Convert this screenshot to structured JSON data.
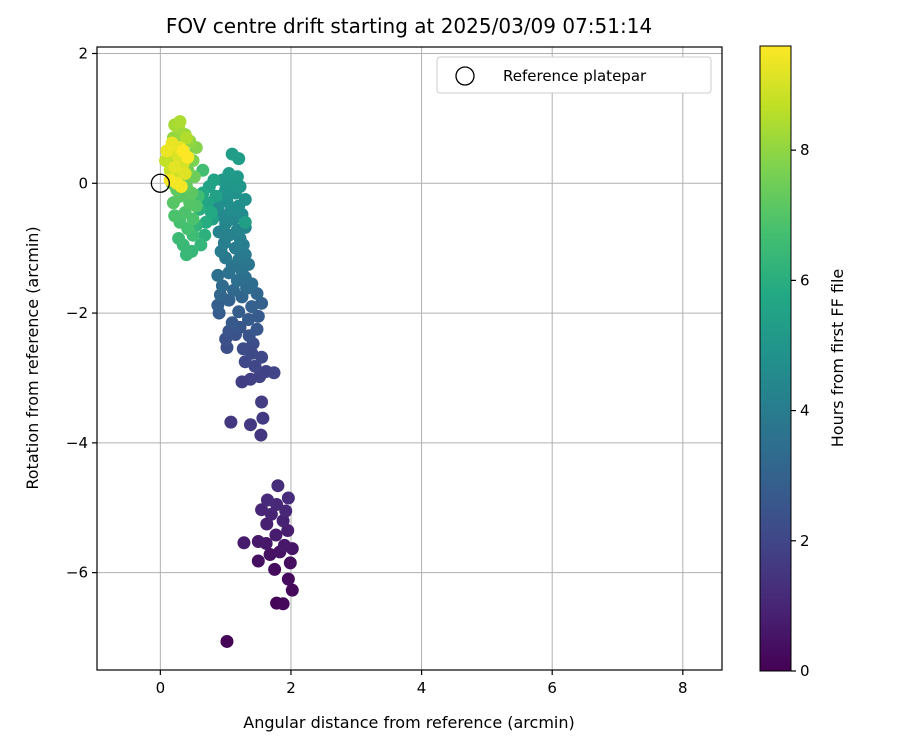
{
  "chart_data": {
    "type": "scatter",
    "title": "FOV centre drift starting at 2025/03/09 07:51:14",
    "xlabel": "Angular distance from reference (arcmin)",
    "ylabel": "Rotation from reference (arcmin)",
    "xlim": [
      -0.97,
      8.6
    ],
    "ylim": [
      -7.5,
      2.1
    ],
    "xticks": [
      0,
      2,
      4,
      6,
      8
    ],
    "yticks": [
      -6,
      -4,
      -2,
      0,
      2
    ],
    "grid": true,
    "legend": {
      "placement": "top-right",
      "entries": [
        "Reference platepar"
      ]
    },
    "reference_point": {
      "label": "Reference platepar",
      "x": 0,
      "y": 0
    },
    "colorbar": {
      "label": "Hours from first FF file",
      "range": [
        0,
        9.6
      ],
      "ticks": [
        0,
        2,
        4,
        6,
        8
      ],
      "colormap": "viridis"
    },
    "points": [
      {
        "x": 1.02,
        "y": -7.06,
        "t": 0.05
      },
      {
        "x": 1.78,
        "y": -6.47,
        "t": 0.15
      },
      {
        "x": 1.88,
        "y": -6.48,
        "t": 0.18
      },
      {
        "x": 2.02,
        "y": -6.27,
        "t": 0.2
      },
      {
        "x": 1.96,
        "y": -6.1,
        "t": 0.25
      },
      {
        "x": 1.75,
        "y": -5.95,
        "t": 0.3
      },
      {
        "x": 1.99,
        "y": -5.85,
        "t": 0.35
      },
      {
        "x": 1.5,
        "y": -5.82,
        "t": 0.4
      },
      {
        "x": 1.68,
        "y": -5.72,
        "t": 0.45
      },
      {
        "x": 1.83,
        "y": -5.68,
        "t": 0.5
      },
      {
        "x": 2.02,
        "y": -5.63,
        "t": 0.55
      },
      {
        "x": 1.9,
        "y": -5.58,
        "t": 0.6
      },
      {
        "x": 1.62,
        "y": -5.55,
        "t": 0.62
      },
      {
        "x": 1.5,
        "y": -5.52,
        "t": 0.65
      },
      {
        "x": 1.28,
        "y": -5.54,
        "t": 0.7
      },
      {
        "x": 1.77,
        "y": -5.42,
        "t": 0.75
      },
      {
        "x": 1.95,
        "y": -5.35,
        "t": 0.8
      },
      {
        "x": 1.63,
        "y": -5.25,
        "t": 0.85
      },
      {
        "x": 1.88,
        "y": -5.2,
        "t": 0.9
      },
      {
        "x": 1.7,
        "y": -5.1,
        "t": 0.95
      },
      {
        "x": 1.55,
        "y": -5.03,
        "t": 1.0
      },
      {
        "x": 1.92,
        "y": -5.05,
        "t": 1.05
      },
      {
        "x": 1.78,
        "y": -4.95,
        "t": 1.1
      },
      {
        "x": 1.64,
        "y": -4.88,
        "t": 1.15
      },
      {
        "x": 1.96,
        "y": -4.85,
        "t": 1.2
      },
      {
        "x": 1.8,
        "y": -4.66,
        "t": 1.25
      },
      {
        "x": 1.54,
        "y": -3.88,
        "t": 1.5
      },
      {
        "x": 1.08,
        "y": -3.68,
        "t": 1.55
      },
      {
        "x": 1.38,
        "y": -3.72,
        "t": 1.6
      },
      {
        "x": 1.57,
        "y": -3.62,
        "t": 1.65
      },
      {
        "x": 1.55,
        "y": -3.37,
        "t": 1.7
      },
      {
        "x": 1.25,
        "y": -3.06,
        "t": 1.75
      },
      {
        "x": 1.38,
        "y": -3.02,
        "t": 1.8
      },
      {
        "x": 1.52,
        "y": -2.98,
        "t": 1.85
      },
      {
        "x": 1.62,
        "y": -2.9,
        "t": 1.9
      },
      {
        "x": 1.74,
        "y": -2.92,
        "t": 1.95
      },
      {
        "x": 1.45,
        "y": -2.82,
        "t": 2.0
      },
      {
        "x": 1.3,
        "y": -2.75,
        "t": 2.05
      },
      {
        "x": 1.55,
        "y": -2.68,
        "t": 2.1
      },
      {
        "x": 1.4,
        "y": -2.62,
        "t": 2.15
      },
      {
        "x": 1.27,
        "y": -2.55,
        "t": 2.2
      },
      {
        "x": 1.42,
        "y": -2.47,
        "t": 2.25
      },
      {
        "x": 1.02,
        "y": -2.53,
        "t": 2.3
      },
      {
        "x": 1.0,
        "y": -2.4,
        "t": 2.35
      },
      {
        "x": 1.15,
        "y": -2.33,
        "t": 2.4
      },
      {
        "x": 1.36,
        "y": -2.35,
        "t": 2.45
      },
      {
        "x": 1.05,
        "y": -2.28,
        "t": 2.5
      },
      {
        "x": 1.22,
        "y": -2.22,
        "t": 2.55
      },
      {
        "x": 1.48,
        "y": -2.25,
        "t": 2.6
      },
      {
        "x": 1.1,
        "y": -2.15,
        "t": 2.65
      },
      {
        "x": 1.35,
        "y": -2.1,
        "t": 2.7
      },
      {
        "x": 1.5,
        "y": -2.05,
        "t": 2.75
      },
      {
        "x": 0.9,
        "y": -2.0,
        "t": 2.8
      },
      {
        "x": 1.2,
        "y": -1.98,
        "t": 2.85
      },
      {
        "x": 0.88,
        "y": -1.88,
        "t": 2.9
      },
      {
        "x": 1.4,
        "y": -1.9,
        "t": 2.95
      },
      {
        "x": 1.55,
        "y": -1.85,
        "t": 3.0
      },
      {
        "x": 1.05,
        "y": -1.8,
        "t": 3.05
      },
      {
        "x": 1.25,
        "y": -1.75,
        "t": 3.1
      },
      {
        "x": 0.92,
        "y": -1.72,
        "t": 3.15
      },
      {
        "x": 1.48,
        "y": -1.7,
        "t": 3.2
      },
      {
        "x": 1.12,
        "y": -1.65,
        "t": 3.25
      },
      {
        "x": 1.32,
        "y": -1.62,
        "t": 3.3
      },
      {
        "x": 0.95,
        "y": -1.58,
        "t": 3.35
      },
      {
        "x": 1.4,
        "y": -1.55,
        "t": 3.4
      },
      {
        "x": 1.18,
        "y": -1.5,
        "t": 3.45
      },
      {
        "x": 1.3,
        "y": -1.45,
        "t": 3.5
      },
      {
        "x": 0.88,
        "y": -1.42,
        "t": 3.55
      },
      {
        "x": 1.05,
        "y": -1.38,
        "t": 3.6
      },
      {
        "x": 1.25,
        "y": -1.35,
        "t": 3.65
      },
      {
        "x": 1.1,
        "y": -1.28,
        "t": 3.7
      },
      {
        "x": 1.35,
        "y": -1.25,
        "t": 3.75
      },
      {
        "x": 1.2,
        "y": -1.18,
        "t": 3.8
      },
      {
        "x": 1.0,
        "y": -1.15,
        "t": 3.85
      },
      {
        "x": 1.3,
        "y": -1.1,
        "t": 3.9
      },
      {
        "x": 0.93,
        "y": -1.05,
        "t": 3.95
      },
      {
        "x": 1.15,
        "y": -1.0,
        "t": 4.0
      },
      {
        "x": 1.27,
        "y": -0.95,
        "t": 4.05
      },
      {
        "x": 0.98,
        "y": -0.92,
        "t": 4.1
      },
      {
        "x": 1.22,
        "y": -0.85,
        "t": 4.15
      },
      {
        "x": 1.05,
        "y": -0.8,
        "t": 4.2
      },
      {
        "x": 0.9,
        "y": -0.75,
        "t": 4.25
      },
      {
        "x": 1.18,
        "y": -0.72,
        "t": 4.3
      },
      {
        "x": 1.3,
        "y": -0.68,
        "t": 4.35
      },
      {
        "x": 1.0,
        "y": -0.62,
        "t": 4.4
      },
      {
        "x": 1.12,
        "y": -0.55,
        "t": 4.45
      },
      {
        "x": 0.95,
        "y": -0.5,
        "t": 4.5
      },
      {
        "x": 1.25,
        "y": -0.48,
        "t": 4.55
      },
      {
        "x": 1.08,
        "y": -0.42,
        "t": 4.6
      },
      {
        "x": 0.88,
        "y": -0.38,
        "t": 4.65
      },
      {
        "x": 1.2,
        "y": -0.35,
        "t": 4.7
      },
      {
        "x": 1.02,
        "y": -0.28,
        "t": 4.75
      },
      {
        "x": 1.3,
        "y": -0.25,
        "t": 4.8
      },
      {
        "x": 0.92,
        "y": -0.2,
        "t": 4.85
      },
      {
        "x": 1.15,
        "y": -0.15,
        "t": 4.9
      },
      {
        "x": 1.0,
        "y": -0.1,
        "t": 4.95
      },
      {
        "x": 1.22,
        "y": -0.05,
        "t": 5.0
      },
      {
        "x": 1.08,
        "y": 0.0,
        "t": 5.05
      },
      {
        "x": 0.95,
        "y": 0.05,
        "t": 5.1
      },
      {
        "x": 1.18,
        "y": 0.1,
        "t": 5.15
      },
      {
        "x": 1.05,
        "y": 0.15,
        "t": 5.2
      },
      {
        "x": 1.2,
        "y": 0.38,
        "t": 5.25
      },
      {
        "x": 1.1,
        "y": 0.45,
        "t": 5.3
      },
      {
        "x": 1.3,
        "y": -0.6,
        "t": 5.35
      },
      {
        "x": 0.8,
        "y": -0.55,
        "t": 5.4
      },
      {
        "x": 0.85,
        "y": -0.2,
        "t": 5.45
      },
      {
        "x": 0.75,
        "y": -0.05,
        "t": 5.5
      },
      {
        "x": 0.82,
        "y": 0.05,
        "t": 5.55
      },
      {
        "x": 0.72,
        "y": -0.3,
        "t": 5.6
      },
      {
        "x": 0.65,
        "y": -0.15,
        "t": 5.7
      },
      {
        "x": 0.78,
        "y": -0.45,
        "t": 5.8
      },
      {
        "x": 0.7,
        "y": -0.6,
        "t": 5.9
      },
      {
        "x": 0.6,
        "y": -0.4,
        "t": 6.0
      },
      {
        "x": 0.68,
        "y": -0.8,
        "t": 6.1
      },
      {
        "x": 0.55,
        "y": -0.65,
        "t": 6.2
      },
      {
        "x": 0.62,
        "y": -0.95,
        "t": 6.3
      },
      {
        "x": 0.48,
        "y": -1.05,
        "t": 6.35
      },
      {
        "x": 0.4,
        "y": -1.1,
        "t": 6.4
      },
      {
        "x": 0.35,
        "y": -0.95,
        "t": 6.45
      },
      {
        "x": 0.28,
        "y": -0.85,
        "t": 6.5
      },
      {
        "x": 0.5,
        "y": -0.8,
        "t": 6.55
      },
      {
        "x": 0.58,
        "y": -0.2,
        "t": 6.6
      },
      {
        "x": 0.65,
        "y": 0.2,
        "t": 6.65
      },
      {
        "x": 0.42,
        "y": -0.7,
        "t": 6.7
      },
      {
        "x": 0.3,
        "y": -0.6,
        "t": 6.75
      },
      {
        "x": 0.5,
        "y": -0.55,
        "t": 6.8
      },
      {
        "x": 0.22,
        "y": -0.5,
        "t": 6.85
      },
      {
        "x": 0.38,
        "y": -0.45,
        "t": 6.9
      },
      {
        "x": 0.55,
        "y": -0.35,
        "t": 6.95
      },
      {
        "x": 0.45,
        "y": -0.3,
        "t": 7.0
      },
      {
        "x": 0.2,
        "y": -0.3,
        "t": 7.05
      },
      {
        "x": 0.3,
        "y": -0.2,
        "t": 7.1
      },
      {
        "x": 0.48,
        "y": -0.15,
        "t": 7.15
      },
      {
        "x": 0.25,
        "y": -0.1,
        "t": 7.2
      },
      {
        "x": 0.4,
        "y": -0.05,
        "t": 7.25
      },
      {
        "x": 0.18,
        "y": 0.0,
        "t": 7.3
      },
      {
        "x": 0.35,
        "y": 0.05,
        "t": 7.4
      },
      {
        "x": 0.52,
        "y": 0.1,
        "t": 7.45
      },
      {
        "x": 0.22,
        "y": 0.12,
        "t": 7.5
      },
      {
        "x": 0.42,
        "y": 0.2,
        "t": 7.55
      },
      {
        "x": 0.3,
        "y": 0.25,
        "t": 7.6
      },
      {
        "x": 0.15,
        "y": 0.3,
        "t": 7.65
      },
      {
        "x": 0.5,
        "y": 0.35,
        "t": 7.7
      },
      {
        "x": 0.25,
        "y": 0.4,
        "t": 7.75
      },
      {
        "x": 0.4,
        "y": 0.45,
        "t": 7.8
      },
      {
        "x": 0.55,
        "y": 0.55,
        "t": 7.85
      },
      {
        "x": 0.18,
        "y": 0.55,
        "t": 7.9
      },
      {
        "x": 0.32,
        "y": 0.6,
        "t": 7.95
      },
      {
        "x": 0.45,
        "y": 0.65,
        "t": 8.0
      },
      {
        "x": 0.2,
        "y": 0.7,
        "t": 8.05
      },
      {
        "x": 0.38,
        "y": 0.75,
        "t": 8.1
      },
      {
        "x": 0.28,
        "y": 0.85,
        "t": 8.2
      },
      {
        "x": 0.22,
        "y": 0.9,
        "t": 8.3
      },
      {
        "x": 0.3,
        "y": 0.95,
        "t": 8.4
      },
      {
        "x": 0.4,
        "y": 0.7,
        "t": 8.5
      },
      {
        "x": 0.12,
        "y": 0.45,
        "t": 8.6
      },
      {
        "x": 0.08,
        "y": 0.35,
        "t": 8.7
      },
      {
        "x": 0.15,
        "y": 0.2,
        "t": 8.8
      },
      {
        "x": 0.25,
        "y": 0.1,
        "t": 8.9
      },
      {
        "x": 0.35,
        "y": 0.3,
        "t": 9.0
      },
      {
        "x": 0.2,
        "y": 0.5,
        "t": 9.05
      },
      {
        "x": 0.28,
        "y": 0.4,
        "t": 9.1
      },
      {
        "x": 0.38,
        "y": 0.15,
        "t": 9.15
      },
      {
        "x": 0.22,
        "y": 0.25,
        "t": 9.2
      },
      {
        "x": 0.3,
        "y": 0.55,
        "t": 9.25
      },
      {
        "x": 0.18,
        "y": 0.62,
        "t": 9.3
      },
      {
        "x": 0.1,
        "y": 0.5,
        "t": 9.35
      },
      {
        "x": 0.25,
        "y": 0.0,
        "t": 9.4
      },
      {
        "x": 0.32,
        "y": -0.05,
        "t": 9.45
      },
      {
        "x": 0.15,
        "y": 0.05,
        "t": 9.5
      },
      {
        "x": 0.42,
        "y": 0.4,
        "t": 9.55
      },
      {
        "x": 0.35,
        "y": 0.5,
        "t": 9.6
      }
    ]
  }
}
